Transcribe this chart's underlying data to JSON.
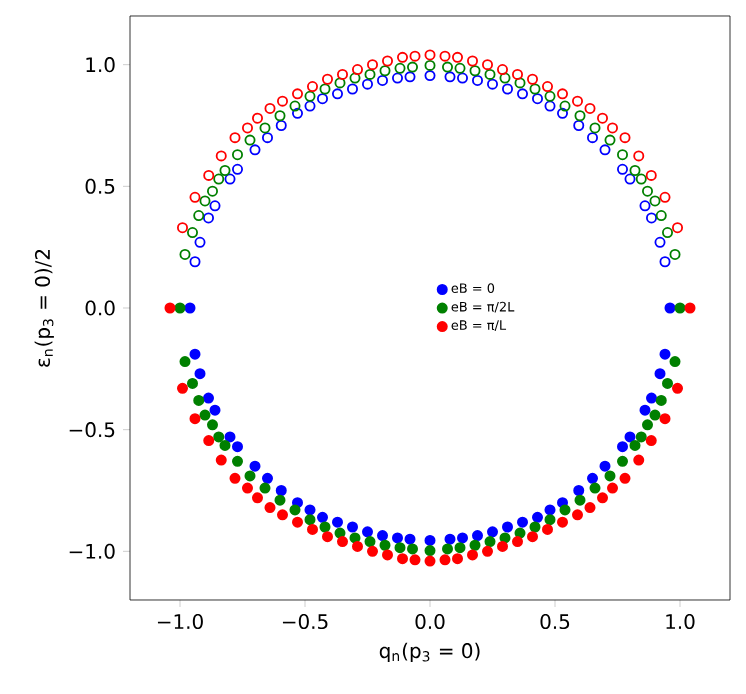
{
  "chart_data": {
    "type": "scatter",
    "xlabel": "q$_{n}$(p$_{3}$ = 0)",
    "ylabel": "ε$_{n}$(p$_{3}$ = 0)/2",
    "xlim": [
      -1.2,
      1.2
    ],
    "ylim": [
      -1.2,
      1.2
    ],
    "xticks": [
      {
        "value": -1.0,
        "label": "−1.0"
      },
      {
        "value": -0.5,
        "label": "−0.5"
      },
      {
        "value": 0.0,
        "label": "0.0"
      },
      {
        "value": 0.5,
        "label": "0.5"
      },
      {
        "value": 1.0,
        "label": "1.0"
      }
    ],
    "yticks": [
      {
        "value": -1.0,
        "label": "−1.0"
      },
      {
        "value": -0.5,
        "label": "−0.5"
      },
      {
        "value": 0.0,
        "label": "0.0"
      },
      {
        "value": 0.5,
        "label": "0.5"
      },
      {
        "value": 1.0,
        "label": "1.0"
      }
    ],
    "marker": "circle",
    "legend": "center",
    "grid": false,
    "series": [
      {
        "name": "eB = 0",
        "color": "#0000ff",
        "x": [
          -0.96,
          0.96,
          -0.94,
          -0.92,
          -0.886,
          -0.86,
          -0.8,
          -0.77,
          -0.7,
          -0.65,
          -0.595,
          -0.53,
          -0.48,
          -0.43,
          -0.37,
          -0.31,
          -0.25,
          -0.19,
          -0.13,
          -0.08,
          0.0,
          0.08,
          0.13,
          0.19,
          0.25,
          0.31,
          0.37,
          0.43,
          0.48,
          0.53,
          0.595,
          0.65,
          0.7,
          0.77,
          0.8,
          0.86,
          0.886,
          0.92,
          0.94,
          -0.94,
          -0.92,
          -0.886,
          -0.86,
          -0.8,
          -0.77,
          -0.7,
          -0.65,
          -0.595,
          -0.53,
          -0.48,
          -0.43,
          -0.37,
          -0.31,
          -0.25,
          -0.19,
          -0.13,
          -0.08,
          0.0,
          0.08,
          0.13,
          0.19,
          0.25,
          0.31,
          0.37,
          0.43,
          0.48,
          0.53,
          0.595,
          0.65,
          0.7,
          0.77,
          0.8,
          0.86,
          0.886,
          0.92,
          0.94
        ],
        "values": [
          0.0,
          0.0,
          0.19,
          0.27,
          0.37,
          0.42,
          0.53,
          0.57,
          0.65,
          0.7,
          0.75,
          0.8,
          0.83,
          0.86,
          0.88,
          0.9,
          0.92,
          0.935,
          0.945,
          0.95,
          0.955,
          0.95,
          0.945,
          0.935,
          0.92,
          0.9,
          0.88,
          0.86,
          0.83,
          0.8,
          0.75,
          0.7,
          0.65,
          0.57,
          0.53,
          0.42,
          0.37,
          0.27,
          0.19,
          -0.19,
          -0.27,
          -0.37,
          -0.42,
          -0.53,
          -0.57,
          -0.65,
          -0.7,
          -0.75,
          -0.8,
          -0.83,
          -0.86,
          -0.88,
          -0.9,
          -0.92,
          -0.935,
          -0.945,
          -0.95,
          -0.955,
          -0.95,
          -0.945,
          -0.935,
          -0.92,
          -0.9,
          -0.88,
          -0.86,
          -0.83,
          -0.8,
          -0.75,
          -0.7,
          -0.65,
          -0.57,
          -0.53,
          -0.42,
          -0.37,
          -0.27,
          -0.19
        ]
      },
      {
        "name": "eB = π/2L",
        "color": "#008000",
        "x": [
          -1.0,
          1.0,
          -0.98,
          -0.95,
          -0.925,
          -0.9,
          -0.87,
          -0.845,
          -0.82,
          -0.77,
          -0.72,
          -0.66,
          -0.6,
          -0.54,
          -0.48,
          -0.42,
          -0.36,
          -0.3,
          -0.24,
          -0.18,
          -0.12,
          -0.07,
          0.0,
          0.07,
          0.12,
          0.18,
          0.24,
          0.3,
          0.36,
          0.42,
          0.48,
          0.54,
          0.6,
          0.66,
          0.72,
          0.77,
          0.82,
          0.845,
          0.87,
          0.9,
          0.925,
          0.95,
          0.98,
          -0.98,
          -0.95,
          -0.925,
          -0.9,
          -0.87,
          -0.845,
          -0.82,
          -0.77,
          -0.72,
          -0.66,
          -0.6,
          -0.54,
          -0.48,
          -0.42,
          -0.36,
          -0.3,
          -0.24,
          -0.18,
          -0.12,
          -0.07,
          0.0,
          0.07,
          0.12,
          0.18,
          0.24,
          0.3,
          0.36,
          0.42,
          0.48,
          0.54,
          0.6,
          0.66,
          0.72,
          0.77,
          0.82,
          0.845,
          0.87,
          0.9,
          0.925,
          0.95,
          0.98
        ],
        "values": [
          0.0,
          0.0,
          0.22,
          0.31,
          0.38,
          0.44,
          0.48,
          0.53,
          0.565,
          0.63,
          0.69,
          0.74,
          0.79,
          0.83,
          0.87,
          0.9,
          0.925,
          0.945,
          0.96,
          0.975,
          0.985,
          0.99,
          0.997,
          0.99,
          0.985,
          0.975,
          0.96,
          0.945,
          0.925,
          0.9,
          0.87,
          0.83,
          0.79,
          0.74,
          0.69,
          0.63,
          0.565,
          0.53,
          0.48,
          0.44,
          0.38,
          0.31,
          0.22,
          -0.22,
          -0.31,
          -0.38,
          -0.44,
          -0.48,
          -0.53,
          -0.565,
          -0.63,
          -0.69,
          -0.74,
          -0.79,
          -0.83,
          -0.87,
          -0.9,
          -0.925,
          -0.945,
          -0.96,
          -0.975,
          -0.985,
          -0.99,
          -0.997,
          -0.99,
          -0.985,
          -0.975,
          -0.96,
          -0.945,
          -0.925,
          -0.9,
          -0.87,
          -0.83,
          -0.79,
          -0.74,
          -0.69,
          -0.63,
          -0.565,
          -0.53,
          -0.48,
          -0.44,
          -0.38,
          -0.31,
          -0.22
        ]
      },
      {
        "name": "eB = π/L",
        "color": "#ff0000",
        "x": [
          -1.04,
          1.04,
          -0.99,
          -0.94,
          -0.885,
          -0.835,
          -0.78,
          -0.73,
          -0.69,
          -0.64,
          -0.59,
          -0.53,
          -0.47,
          -0.41,
          -0.35,
          -0.29,
          -0.23,
          -0.17,
          -0.11,
          -0.06,
          0.0,
          0.06,
          0.11,
          0.17,
          0.23,
          0.29,
          0.35,
          0.41,
          0.47,
          0.53,
          0.59,
          0.64,
          0.69,
          0.73,
          0.78,
          0.835,
          0.885,
          0.94,
          0.99,
          -0.99,
          -0.94,
          -0.885,
          -0.835,
          -0.78,
          -0.73,
          -0.69,
          -0.64,
          -0.59,
          -0.53,
          -0.47,
          -0.41,
          -0.35,
          -0.29,
          -0.23,
          -0.17,
          -0.11,
          -0.06,
          0.0,
          0.06,
          0.11,
          0.17,
          0.23,
          0.29,
          0.35,
          0.41,
          0.47,
          0.53,
          0.59,
          0.64,
          0.69,
          0.73,
          0.78,
          0.835,
          0.885,
          0.94,
          0.99
        ],
        "values": [
          0.0,
          0.0,
          0.33,
          0.455,
          0.545,
          0.625,
          0.7,
          0.74,
          0.78,
          0.82,
          0.85,
          0.88,
          0.91,
          0.94,
          0.96,
          0.98,
          1.0,
          1.015,
          1.03,
          1.035,
          1.04,
          1.035,
          1.03,
          1.015,
          1.0,
          0.98,
          0.96,
          0.94,
          0.91,
          0.88,
          0.85,
          0.82,
          0.78,
          0.74,
          0.7,
          0.625,
          0.545,
          0.455,
          0.33,
          -0.33,
          -0.455,
          -0.545,
          -0.625,
          -0.7,
          -0.74,
          -0.78,
          -0.82,
          -0.85,
          -0.88,
          -0.91,
          -0.94,
          -0.96,
          -0.98,
          -1.0,
          -1.015,
          -1.03,
          -1.035,
          -1.04,
          -1.035,
          -1.03,
          -1.015,
          -1.0,
          -0.98,
          -0.96,
          -0.94,
          -0.91,
          -0.88,
          -0.85,
          -0.82,
          -0.78,
          -0.74,
          -0.7,
          -0.625,
          -0.545,
          -0.455,
          -0.33
        ]
      }
    ]
  }
}
